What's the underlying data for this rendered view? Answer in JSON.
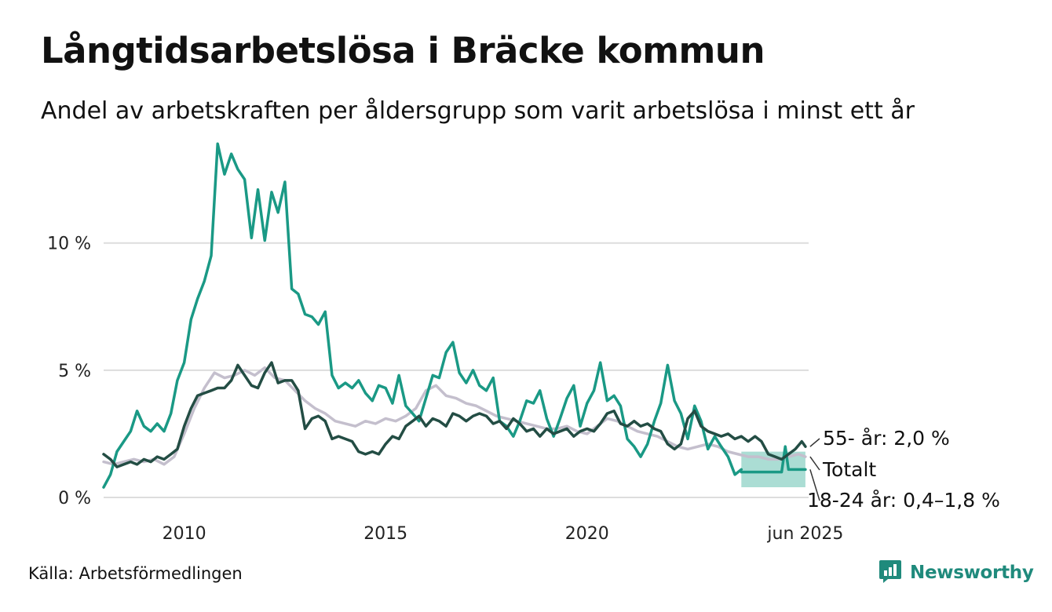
{
  "title": "Långtidsarbetslösa i Bräcke kommun",
  "subtitle": "Andel av arbetskraften per åldersgrupp som varit arbetslösa i minst ett år",
  "source": "Källa: Arbetsförmedlingen",
  "brand": "Newsworthy",
  "colors": {
    "age_18_24": "#1a9985",
    "age_55": "#234d44",
    "total": "#c4bfcd",
    "band": "#8fd1c5",
    "grid": "#dddddd",
    "brand": "#1f8a7c"
  },
  "chart_data": {
    "type": "line",
    "x_range": [
      2008.0,
      2025.5
    ],
    "ylim": [
      0,
      14
    ],
    "y_ticks": [
      {
        "value": 0,
        "label": "0 %"
      },
      {
        "value": 5,
        "label": "5 %"
      },
      {
        "value": 10,
        "label": "10 %"
      }
    ],
    "x_ticks": [
      {
        "value": 2010,
        "label": "2010"
      },
      {
        "value": 2015,
        "label": "2015"
      },
      {
        "value": 2020,
        "label": "2020"
      },
      {
        "value": 2025.42,
        "label": "jun 2025"
      }
    ],
    "grid": true,
    "series": [
      {
        "key": "total",
        "name": "Totalt",
        "end_label": "Totalt",
        "points": [
          [
            2008.0,
            1.4
          ],
          [
            2008.25,
            1.3
          ],
          [
            2008.5,
            1.4
          ],
          [
            2008.75,
            1.5
          ],
          [
            2009.0,
            1.4
          ],
          [
            2009.25,
            1.5
          ],
          [
            2009.5,
            1.3
          ],
          [
            2009.75,
            1.6
          ],
          [
            2010.0,
            2.5
          ],
          [
            2010.25,
            3.5
          ],
          [
            2010.5,
            4.3
          ],
          [
            2010.75,
            4.9
          ],
          [
            2011.0,
            4.7
          ],
          [
            2011.25,
            4.8
          ],
          [
            2011.5,
            5.0
          ],
          [
            2011.75,
            4.8
          ],
          [
            2012.0,
            5.1
          ],
          [
            2012.25,
            4.7
          ],
          [
            2012.5,
            4.6
          ],
          [
            2012.75,
            4.2
          ],
          [
            2013.0,
            3.8
          ],
          [
            2013.25,
            3.5
          ],
          [
            2013.5,
            3.3
          ],
          [
            2013.75,
            3.0
          ],
          [
            2014.0,
            2.9
          ],
          [
            2014.25,
            2.8
          ],
          [
            2014.5,
            3.0
          ],
          [
            2014.75,
            2.9
          ],
          [
            2015.0,
            3.1
          ],
          [
            2015.25,
            3.0
          ],
          [
            2015.5,
            3.2
          ],
          [
            2015.75,
            3.5
          ],
          [
            2016.0,
            4.2
          ],
          [
            2016.25,
            4.4
          ],
          [
            2016.5,
            4.0
          ],
          [
            2016.75,
            3.9
          ],
          [
            2017.0,
            3.7
          ],
          [
            2017.25,
            3.6
          ],
          [
            2017.5,
            3.4
          ],
          [
            2017.75,
            3.2
          ],
          [
            2018.0,
            3.1
          ],
          [
            2018.25,
            3.0
          ],
          [
            2018.5,
            2.9
          ],
          [
            2018.75,
            2.8
          ],
          [
            2019.0,
            2.7
          ],
          [
            2019.25,
            2.7
          ],
          [
            2019.5,
            2.8
          ],
          [
            2019.75,
            2.6
          ],
          [
            2020.0,
            2.5
          ],
          [
            2020.25,
            2.8
          ],
          [
            2020.5,
            3.1
          ],
          [
            2020.75,
            3.0
          ],
          [
            2021.0,
            2.8
          ],
          [
            2021.25,
            2.6
          ],
          [
            2021.5,
            2.5
          ],
          [
            2021.75,
            2.4
          ],
          [
            2022.0,
            2.2
          ],
          [
            2022.25,
            2.0
          ],
          [
            2022.5,
            1.9
          ],
          [
            2022.75,
            2.0
          ],
          [
            2023.0,
            2.1
          ],
          [
            2023.25,
            2.0
          ],
          [
            2023.5,
            1.8
          ],
          [
            2023.75,
            1.7
          ],
          [
            2024.0,
            1.6
          ],
          [
            2024.25,
            1.6
          ],
          [
            2024.5,
            1.5
          ],
          [
            2024.75,
            1.5
          ],
          [
            2025.0,
            1.6
          ],
          [
            2025.25,
            1.7
          ],
          [
            2025.42,
            1.6
          ]
        ]
      },
      {
        "key": "age_55",
        "name": "55- år",
        "end_label": "55- år: 2,0 %",
        "points": [
          [
            2008.0,
            1.7
          ],
          [
            2008.17,
            1.5
          ],
          [
            2008.33,
            1.2
          ],
          [
            2008.5,
            1.3
          ],
          [
            2008.67,
            1.4
          ],
          [
            2008.83,
            1.3
          ],
          [
            2009.0,
            1.5
          ],
          [
            2009.17,
            1.4
          ],
          [
            2009.33,
            1.6
          ],
          [
            2009.5,
            1.5
          ],
          [
            2009.67,
            1.7
          ],
          [
            2009.83,
            1.9
          ],
          [
            2010.0,
            2.8
          ],
          [
            2010.17,
            3.5
          ],
          [
            2010.33,
            4.0
          ],
          [
            2010.5,
            4.1
          ],
          [
            2010.67,
            4.2
          ],
          [
            2010.83,
            4.3
          ],
          [
            2011.0,
            4.3
          ],
          [
            2011.17,
            4.6
          ],
          [
            2011.33,
            5.2
          ],
          [
            2011.5,
            4.8
          ],
          [
            2011.67,
            4.4
          ],
          [
            2011.83,
            4.3
          ],
          [
            2012.0,
            4.9
          ],
          [
            2012.17,
            5.3
          ],
          [
            2012.33,
            4.5
          ],
          [
            2012.5,
            4.6
          ],
          [
            2012.67,
            4.6
          ],
          [
            2012.83,
            4.2
          ],
          [
            2013.0,
            2.7
          ],
          [
            2013.17,
            3.1
          ],
          [
            2013.33,
            3.2
          ],
          [
            2013.5,
            3.0
          ],
          [
            2013.67,
            2.3
          ],
          [
            2013.83,
            2.4
          ],
          [
            2014.0,
            2.3
          ],
          [
            2014.17,
            2.2
          ],
          [
            2014.33,
            1.8
          ],
          [
            2014.5,
            1.7
          ],
          [
            2014.67,
            1.8
          ],
          [
            2014.83,
            1.7
          ],
          [
            2015.0,
            2.1
          ],
          [
            2015.17,
            2.4
          ],
          [
            2015.33,
            2.3
          ],
          [
            2015.5,
            2.8
          ],
          [
            2015.67,
            3.0
          ],
          [
            2015.83,
            3.2
          ],
          [
            2016.0,
            2.8
          ],
          [
            2016.17,
            3.1
          ],
          [
            2016.33,
            3.0
          ],
          [
            2016.5,
            2.8
          ],
          [
            2016.67,
            3.3
          ],
          [
            2016.83,
            3.2
          ],
          [
            2017.0,
            3.0
          ],
          [
            2017.17,
            3.2
          ],
          [
            2017.33,
            3.3
          ],
          [
            2017.5,
            3.2
          ],
          [
            2017.67,
            2.9
          ],
          [
            2017.83,
            3.0
          ],
          [
            2018.0,
            2.7
          ],
          [
            2018.17,
            3.1
          ],
          [
            2018.33,
            2.9
          ],
          [
            2018.5,
            2.6
          ],
          [
            2018.67,
            2.7
          ],
          [
            2018.83,
            2.4
          ],
          [
            2019.0,
            2.7
          ],
          [
            2019.17,
            2.5
          ],
          [
            2019.33,
            2.6
          ],
          [
            2019.5,
            2.7
          ],
          [
            2019.67,
            2.4
          ],
          [
            2019.83,
            2.6
          ],
          [
            2020.0,
            2.7
          ],
          [
            2020.17,
            2.6
          ],
          [
            2020.33,
            2.9
          ],
          [
            2020.5,
            3.3
          ],
          [
            2020.67,
            3.4
          ],
          [
            2020.83,
            2.9
          ],
          [
            2021.0,
            2.8
          ],
          [
            2021.17,
            3.0
          ],
          [
            2021.33,
            2.8
          ],
          [
            2021.5,
            2.9
          ],
          [
            2021.67,
            2.7
          ],
          [
            2021.83,
            2.6
          ],
          [
            2022.0,
            2.1
          ],
          [
            2022.17,
            1.9
          ],
          [
            2022.33,
            2.1
          ],
          [
            2022.5,
            3.1
          ],
          [
            2022.67,
            3.4
          ],
          [
            2022.83,
            2.8
          ],
          [
            2023.0,
            2.6
          ],
          [
            2023.17,
            2.5
          ],
          [
            2023.33,
            2.4
          ],
          [
            2023.5,
            2.5
          ],
          [
            2023.67,
            2.3
          ],
          [
            2023.83,
            2.4
          ],
          [
            2024.0,
            2.2
          ],
          [
            2024.17,
            2.4
          ],
          [
            2024.33,
            2.2
          ],
          [
            2024.5,
            1.7
          ],
          [
            2024.67,
            1.6
          ],
          [
            2024.83,
            1.5
          ],
          [
            2025.0,
            1.7
          ],
          [
            2025.17,
            1.9
          ],
          [
            2025.33,
            2.2
          ],
          [
            2025.42,
            2.0
          ]
        ]
      },
      {
        "key": "age_18_24",
        "name": "18-24 år",
        "end_label": "18-24 år: 0,4–1,8 %",
        "points": [
          [
            2008.0,
            0.4
          ],
          [
            2008.17,
            0.9
          ],
          [
            2008.33,
            1.8
          ],
          [
            2008.5,
            2.2
          ],
          [
            2008.67,
            2.6
          ],
          [
            2008.83,
            3.4
          ],
          [
            2009.0,
            2.8
          ],
          [
            2009.17,
            2.6
          ],
          [
            2009.33,
            2.9
          ],
          [
            2009.5,
            2.6
          ],
          [
            2009.67,
            3.3
          ],
          [
            2009.83,
            4.6
          ],
          [
            2010.0,
            5.3
          ],
          [
            2010.17,
            7.0
          ],
          [
            2010.33,
            7.8
          ],
          [
            2010.5,
            8.5
          ],
          [
            2010.67,
            9.5
          ],
          [
            2010.83,
            13.9
          ],
          [
            2011.0,
            12.7
          ],
          [
            2011.17,
            13.5
          ],
          [
            2011.33,
            12.9
          ],
          [
            2011.5,
            12.5
          ],
          [
            2011.67,
            10.2
          ],
          [
            2011.83,
            12.1
          ],
          [
            2012.0,
            10.1
          ],
          [
            2012.17,
            12.0
          ],
          [
            2012.33,
            11.2
          ],
          [
            2012.5,
            12.4
          ],
          [
            2012.67,
            8.2
          ],
          [
            2012.83,
            8.0
          ],
          [
            2013.0,
            7.2
          ],
          [
            2013.17,
            7.1
          ],
          [
            2013.33,
            6.8
          ],
          [
            2013.5,
            7.3
          ],
          [
            2013.67,
            4.8
          ],
          [
            2013.83,
            4.3
          ],
          [
            2014.0,
            4.5
          ],
          [
            2014.17,
            4.3
          ],
          [
            2014.33,
            4.6
          ],
          [
            2014.5,
            4.1
          ],
          [
            2014.67,
            3.8
          ],
          [
            2014.83,
            4.4
          ],
          [
            2015.0,
            4.3
          ],
          [
            2015.17,
            3.7
          ],
          [
            2015.33,
            4.8
          ],
          [
            2015.5,
            3.6
          ],
          [
            2015.67,
            3.3
          ],
          [
            2015.83,
            3.0
          ],
          [
            2016.0,
            3.9
          ],
          [
            2016.17,
            4.8
          ],
          [
            2016.33,
            4.7
          ],
          [
            2016.5,
            5.7
          ],
          [
            2016.67,
            6.1
          ],
          [
            2016.83,
            4.9
          ],
          [
            2017.0,
            4.5
          ],
          [
            2017.17,
            5.0
          ],
          [
            2017.33,
            4.4
          ],
          [
            2017.5,
            4.2
          ],
          [
            2017.67,
            4.7
          ],
          [
            2017.83,
            3.0
          ],
          [
            2018.0,
            2.8
          ],
          [
            2018.17,
            2.4
          ],
          [
            2018.33,
            3.0
          ],
          [
            2018.5,
            3.8
          ],
          [
            2018.67,
            3.7
          ],
          [
            2018.83,
            4.2
          ],
          [
            2019.0,
            3.1
          ],
          [
            2019.17,
            2.4
          ],
          [
            2019.33,
            3.1
          ],
          [
            2019.5,
            3.9
          ],
          [
            2019.67,
            4.4
          ],
          [
            2019.83,
            2.8
          ],
          [
            2020.0,
            3.7
          ],
          [
            2020.17,
            4.2
          ],
          [
            2020.33,
            5.3
          ],
          [
            2020.5,
            3.8
          ],
          [
            2020.67,
            4.0
          ],
          [
            2020.83,
            3.6
          ],
          [
            2021.0,
            2.3
          ],
          [
            2021.17,
            2.0
          ],
          [
            2021.33,
            1.6
          ],
          [
            2021.5,
            2.1
          ],
          [
            2021.67,
            3.0
          ],
          [
            2021.83,
            3.7
          ],
          [
            2022.0,
            5.2
          ],
          [
            2022.17,
            3.8
          ],
          [
            2022.33,
            3.3
          ],
          [
            2022.5,
            2.3
          ],
          [
            2022.67,
            3.6
          ],
          [
            2022.83,
            3.0
          ],
          [
            2023.0,
            1.9
          ],
          [
            2023.17,
            2.4
          ],
          [
            2023.33,
            2.0
          ],
          [
            2023.5,
            1.6
          ],
          [
            2023.67,
            0.9
          ],
          [
            2023.83,
            1.1
          ]
        ]
      },
      {
        "key": "age_18_24_range",
        "name": "18-24 år",
        "type": "band",
        "points": [
          [
            2023.83,
            0.4,
            1.8
          ],
          [
            2024.5,
            0.4,
            1.8
          ],
          [
            2025.0,
            0.4,
            1.8
          ],
          [
            2025.42,
            0.4,
            1.8
          ]
        ],
        "center": [
          [
            2023.83,
            1.0
          ],
          [
            2024.5,
            1.0
          ],
          [
            2024.83,
            1.0
          ],
          [
            2024.92,
            2.0
          ],
          [
            2025.0,
            1.1
          ],
          [
            2025.42,
            1.1
          ]
        ]
      }
    ]
  }
}
